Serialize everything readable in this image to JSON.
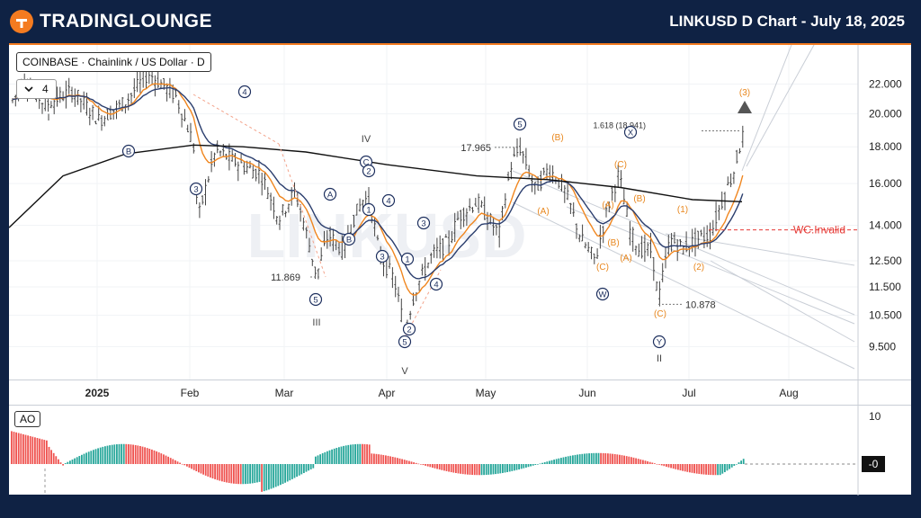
{
  "header": {
    "logo_text": "TRADINGLOUNGE",
    "title": "LINKUSD D Chart - July 18, 2025"
  },
  "legend": {
    "symbol": "COINBASE · Chainlink / US Dollar · D",
    "indicator_count": "4",
    "chevron_icon": "chevron-down-icon"
  },
  "watermark": "LINKUSD",
  "colors": {
    "up": "#26a69a",
    "down": "#ef5350",
    "candle": "#444444",
    "ema_fast": "#f0861f",
    "ema_mid": "#2b3e6e",
    "ma_slow": "#111111",
    "wave_orange": "#e8871e",
    "wave_navy": "#1d2f5e",
    "invalid": "#e53935",
    "header": "#0f2244"
  },
  "chart_data": [
    {
      "type": "candlestick",
      "title": "LINKUSD D Chart - July 18, 2025",
      "x_ticks": [
        "2025",
        "Feb",
        "Mar",
        "Apr",
        "May",
        "Jun",
        "Jul",
        "Aug"
      ],
      "y_ticks": [
        "22.000",
        "20.000",
        "18.000",
        "16.000",
        "14.000",
        "12.500",
        "11.500",
        "10.500",
        "9.500"
      ],
      "y_tick_values": [
        22,
        20,
        18,
        16,
        14,
        12.5,
        11.5,
        10.5,
        9.5
      ],
      "scale": "log",
      "y_range": [
        8.7,
        24.5
      ],
      "price_labels": [
        {
          "text": "11.869",
          "value": 11.869
        },
        {
          "text": "17.965",
          "value": 17.965
        },
        {
          "text": "10.878",
          "value": 10.878
        },
        {
          "text": "1.618 (18.941)",
          "value": 18.941
        }
      ],
      "annotations": [
        {
          "text": "WC.Invalid",
          "value": 13.8
        },
        {
          "text": "I",
          "style": "roman"
        },
        {
          "text": "II",
          "style": "roman"
        },
        {
          "text": "III",
          "style": "roman"
        },
        {
          "text": "IV",
          "style": "roman"
        },
        {
          "text": "V",
          "style": "roman"
        }
      ],
      "wave_labels_navy": [
        "B",
        "3",
        "4",
        "A",
        "B",
        "C",
        "2",
        "1",
        "4",
        "3",
        "3",
        "1",
        "4",
        "2",
        "5",
        "5",
        "5",
        "X",
        "W",
        "Y"
      ],
      "wave_labels_orange": [
        "(B)",
        "(C)",
        "(A)",
        "(A)",
        "(B)",
        "(B)",
        "(C)",
        "(A)",
        "(C)",
        "(1)",
        "(2)",
        "(3)"
      ]
    },
    {
      "type": "bar",
      "title": "AO",
      "y_ticks": [
        "10",
        "-0"
      ],
      "y_tick_values": [
        10,
        0
      ],
      "values_note": "Awesome Oscillator histogram"
    }
  ]
}
